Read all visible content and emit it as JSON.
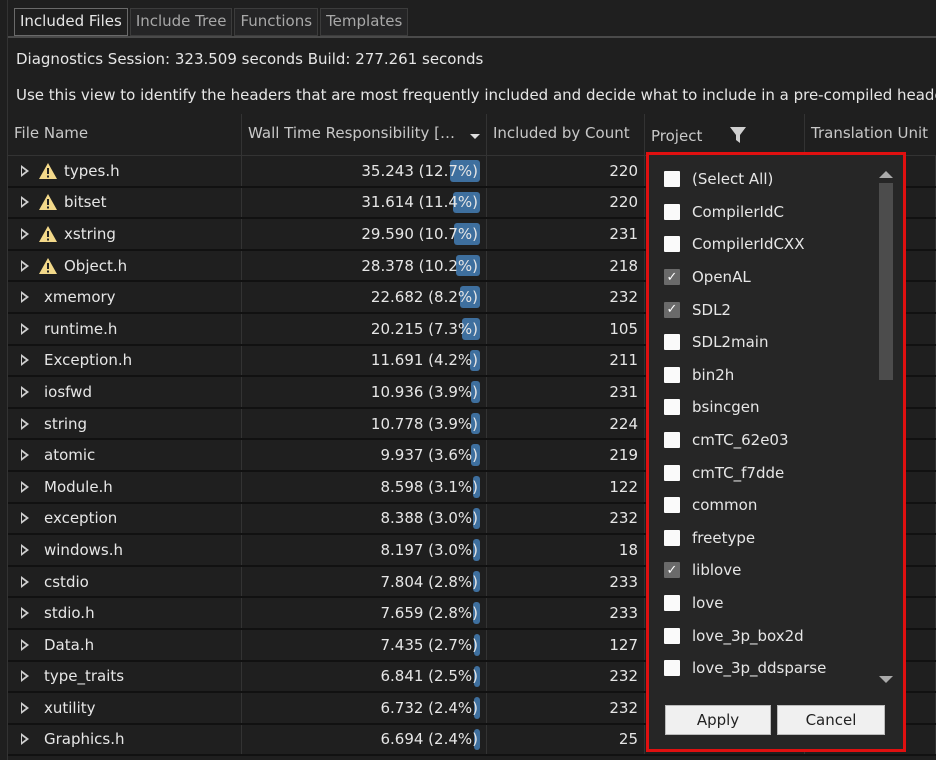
{
  "tabs": [
    "Included Files",
    "Include Tree",
    "Functions",
    "Templates"
  ],
  "info": {
    "session": "Diagnostics Session: 323.509 seconds  Build: 277.261 seconds",
    "description": "Use this view to identify the headers that are most frequently included and decide what to include in a pre-compiled header"
  },
  "columns": [
    "File Name",
    "Wall Time Responsibility [sec]",
    "Included by Count",
    "Project",
    "Translation Unit"
  ],
  "sort": "descending",
  "colors": {
    "bar": "#3e6f9e",
    "warning": "#f3d98a",
    "highlight": "#e01010"
  },
  "rows": [
    {
      "name": "types.h",
      "warn": true,
      "time": "35.243 (12.7%)",
      "pct": 12.7,
      "count": "220"
    },
    {
      "name": "bitset",
      "warn": true,
      "time": "31.614 (11.4%)",
      "pct": 11.4,
      "count": "220"
    },
    {
      "name": "xstring",
      "warn": true,
      "time": "29.590 (10.7%)",
      "pct": 10.7,
      "count": "231"
    },
    {
      "name": "Object.h",
      "warn": true,
      "time": "28.378 (10.2%)",
      "pct": 10.2,
      "count": "218"
    },
    {
      "name": "xmemory",
      "warn": false,
      "time": "22.682 (8.2%)",
      "pct": 8.2,
      "count": "232"
    },
    {
      "name": "runtime.h",
      "warn": false,
      "time": "20.215 (7.3%)",
      "pct": 7.3,
      "count": "105"
    },
    {
      "name": "Exception.h",
      "warn": false,
      "time": "11.691 (4.2%)",
      "pct": 4.2,
      "count": "211"
    },
    {
      "name": "iosfwd",
      "warn": false,
      "time": "10.936 (3.9%)",
      "pct": 3.9,
      "count": "231"
    },
    {
      "name": "string",
      "warn": false,
      "time": "10.778 (3.9%)",
      "pct": 3.9,
      "count": "224"
    },
    {
      "name": "atomic",
      "warn": false,
      "time": "9.937 (3.6%)",
      "pct": 3.6,
      "count": "219"
    },
    {
      "name": "Module.h",
      "warn": false,
      "time": "8.598 (3.1%)",
      "pct": 3.1,
      "count": "122"
    },
    {
      "name": "exception",
      "warn": false,
      "time": "8.388 (3.0%)",
      "pct": 3.0,
      "count": "232"
    },
    {
      "name": "windows.h",
      "warn": false,
      "time": "8.197 (3.0%)",
      "pct": 3.0,
      "count": "18"
    },
    {
      "name": "cstdio",
      "warn": false,
      "time": "7.804 (2.8%)",
      "pct": 2.8,
      "count": "233"
    },
    {
      "name": "stdio.h",
      "warn": false,
      "time": "7.659 (2.8%)",
      "pct": 2.8,
      "count": "233"
    },
    {
      "name": "Data.h",
      "warn": false,
      "time": "7.435 (2.7%)",
      "pct": 2.7,
      "count": "127"
    },
    {
      "name": "type_traits",
      "warn": false,
      "time": "6.841 (2.5%)",
      "pct": 2.5,
      "count": "232"
    },
    {
      "name": "xutility",
      "warn": false,
      "time": "6.732 (2.4%)",
      "pct": 2.4,
      "count": "232"
    },
    {
      "name": "Graphics.h",
      "warn": false,
      "time": "6.694 (2.4%)",
      "pct": 2.4,
      "count": "25"
    }
  ],
  "filter": {
    "items": [
      {
        "label": "(Select All)",
        "checked": false
      },
      {
        "label": "CompilerIdC",
        "checked": false
      },
      {
        "label": "CompilerIdCXX",
        "checked": false
      },
      {
        "label": "OpenAL",
        "checked": true
      },
      {
        "label": "SDL2",
        "checked": true
      },
      {
        "label": "SDL2main",
        "checked": false
      },
      {
        "label": "bin2h",
        "checked": false
      },
      {
        "label": "bsincgen",
        "checked": false
      },
      {
        "label": "cmTC_62e03",
        "checked": false
      },
      {
        "label": "cmTC_f7dde",
        "checked": false
      },
      {
        "label": "common",
        "checked": false
      },
      {
        "label": "freetype",
        "checked": false
      },
      {
        "label": "liblove",
        "checked": true
      },
      {
        "label": "love",
        "checked": false
      },
      {
        "label": "love_3p_box2d",
        "checked": false
      },
      {
        "label": "love_3p_ddsparse",
        "checked": false
      }
    ],
    "apply": "Apply",
    "cancel": "Cancel"
  }
}
